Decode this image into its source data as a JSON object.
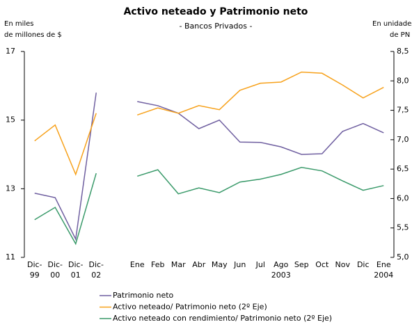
{
  "chart_data": {
    "type": "line",
    "title": "Activo neteado y Patrimonio neto",
    "subtitle": "- Bancos Privados -",
    "y_label": [
      "En miles",
      "de millones de $"
    ],
    "y2_label": [
      "En unidades",
      "de PN"
    ],
    "categories": [
      [
        "Dic-",
        "99"
      ],
      [
        "Dic-",
        "00"
      ],
      [
        "Dic-",
        "01"
      ],
      [
        "Dic-",
        "02"
      ],
      null,
      [
        "Ene"
      ],
      [
        "Feb"
      ],
      [
        "Mar"
      ],
      [
        "Abr"
      ],
      [
        "May"
      ],
      [
        "Jun"
      ],
      [
        "Jul"
      ],
      [
        "Ago",
        "2003"
      ],
      [
        "Sep"
      ],
      [
        "Oct"
      ],
      [
        "Nov"
      ],
      [
        "Dic"
      ],
      [
        "Ene",
        "2004"
      ]
    ],
    "series": [
      {
        "name": "Patrimonio neto",
        "color": "#6f5fa0",
        "axis": "y",
        "values": [
          12.87,
          12.74,
          11.53,
          15.8,
          null,
          15.54,
          15.42,
          15.2,
          14.75,
          15.0,
          14.36,
          14.35,
          14.22,
          14.0,
          14.02,
          14.67,
          14.9,
          14.63
        ]
      },
      {
        "name": "Activo neteado/ Patrimonio neto (2º Eje)",
        "color": "#f7a11a",
        "axis": "y2",
        "values": [
          6.98,
          7.25,
          6.41,
          7.45,
          null,
          7.42,
          7.54,
          7.45,
          7.58,
          7.51,
          7.84,
          7.96,
          7.98,
          8.15,
          8.13,
          7.93,
          7.71,
          7.89
        ]
      },
      {
        "name": "Activo neteado con rendimiento/ Patrimonio neto (2º Eje)",
        "color": "#3a9a6a",
        "axis": "y2",
        "values": [
          5.64,
          5.85,
          5.23,
          6.43,
          null,
          6.38,
          6.49,
          6.08,
          6.18,
          6.1,
          6.28,
          6.33,
          6.41,
          6.53,
          6.47,
          6.3,
          6.14,
          6.22
        ]
      }
    ],
    "ylim": [
      11,
      17
    ],
    "yticks": [
      11,
      13,
      15,
      17
    ],
    "y2lim": [
      5,
      8.5
    ],
    "y2ticks": [
      {
        "value": 5,
        "label": "5,0"
      },
      {
        "value": 5.5,
        "label": "5,5"
      },
      {
        "value": 6,
        "label": "6,0"
      },
      {
        "value": 6.5,
        "label": "6,5"
      },
      {
        "value": 7,
        "label": "7,0"
      },
      {
        "value": 7.5,
        "label": "7,5"
      },
      {
        "value": 8,
        "label": "8,0"
      },
      {
        "value": 8.5,
        "label": "8,5"
      }
    ],
    "grid": false
  }
}
